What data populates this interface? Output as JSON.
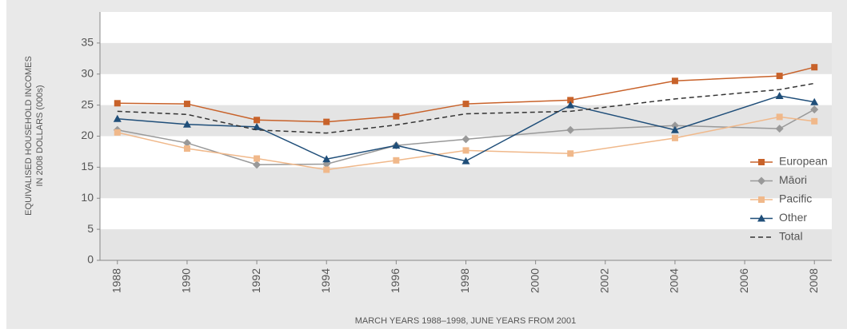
{
  "chart_data": {
    "type": "line",
    "y_label_lines": [
      "EQUIVALISED HOUSEHOLD INCOMES",
      "IN 2008 DOLLARS (000s)"
    ],
    "x_label": "MARCH YEARS 1988–1998, JUNE YEARS FROM 2001",
    "x": [
      1988,
      1990,
      1992,
      1994,
      1996,
      1998,
      2001,
      2004,
      2007,
      2008
    ],
    "series": [
      {
        "name": "European",
        "color": "#c8622a",
        "marker": "square",
        "values": [
          25.3,
          25.2,
          22.6,
          22.3,
          23.2,
          25.2,
          25.8,
          28.9,
          29.7,
          31.1
        ]
      },
      {
        "name": "Māori",
        "color": "#999999",
        "marker": "diamond",
        "values": [
          21.0,
          18.9,
          15.4,
          15.5,
          18.5,
          19.5,
          21.0,
          21.7,
          21.2,
          24.3
        ]
      },
      {
        "name": "Pacific",
        "color": "#f0b88a",
        "marker": "square",
        "values": [
          20.6,
          18.0,
          16.4,
          14.6,
          16.1,
          17.7,
          17.2,
          19.7,
          23.1,
          22.4
        ]
      },
      {
        "name": "Other",
        "color": "#1f4e79",
        "marker": "triangle",
        "values": [
          22.8,
          21.9,
          21.5,
          16.3,
          18.5,
          16.0,
          25.0,
          21.0,
          26.5,
          25.5
        ]
      },
      {
        "name": "Total",
        "color": "#333333",
        "marker": "none",
        "dash": true,
        "values": [
          24.0,
          23.5,
          21.0,
          20.5,
          21.8,
          23.6,
          24.0,
          26.0,
          27.5,
          28.5
        ]
      }
    ],
    "xlim": [
      1987.5,
      2008.5
    ],
    "xticks": [
      1988,
      1990,
      1992,
      1994,
      1996,
      1998,
      2000,
      2002,
      2004,
      2006,
      2008
    ],
    "ylim": [
      0,
      40
    ],
    "yticks": [
      0,
      5,
      10,
      15,
      20,
      25,
      30,
      35
    ],
    "banded_background": true,
    "legend": "right"
  }
}
